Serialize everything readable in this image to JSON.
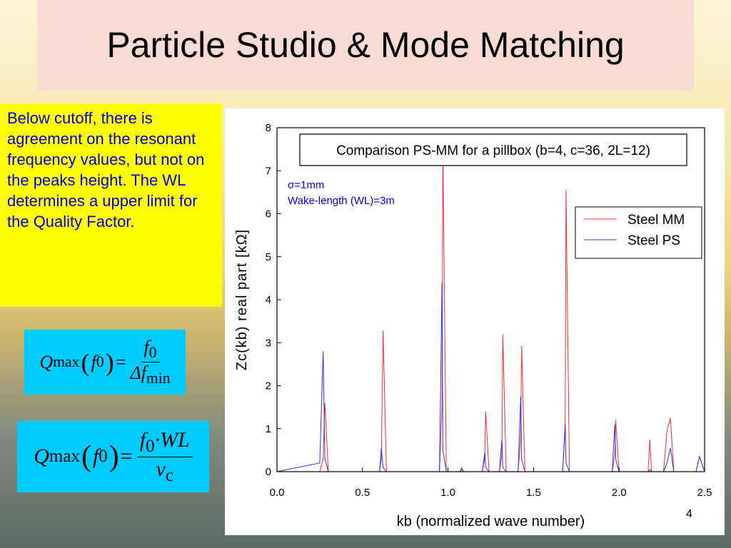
{
  "slide_title": "Particle Studio & Mode Matching",
  "body_text": "Below cutoff, there is agreement on the resonant  frequency values, but not on the peaks height. The WL determines a upper limit for the Quality Factor.",
  "formulas": [
    {
      "lhs": "Q",
      "lhs_sub": "max",
      "open": "(",
      "arg": "f",
      "arg_sub": "0",
      "close": ")",
      "eq": "=",
      "num": "f",
      "num_sub": "0",
      "num_rest": "",
      "den": "Δf",
      "den_sub": "min"
    },
    {
      "lhs": "Q",
      "lhs_sub": "max",
      "open": "(",
      "arg": "f",
      "arg_sub": "0",
      "close": ")",
      "eq": "=",
      "num": "f",
      "num_sub": "0",
      "num_rest": "·WL",
      "den": "ν",
      "den_sub": "c"
    }
  ],
  "page_number": "4",
  "chart_data": {
    "type": "line",
    "annotations": [
      "Comparison PS-MM for a pillbox (b=4, c=36, 2L=12)",
      "σ=1mm",
      "Wake-length (WL)=3m"
    ],
    "x_label": "kb (normalized wave number)",
    "y_label": "Zc(kb) real part [kΩ]",
    "x": [
      0.0,
      0.25,
      0.27,
      0.28,
      0.3,
      0.6,
      0.61,
      0.62,
      0.64,
      0.95,
      0.965,
      0.97,
      0.99,
      1.07,
      1.08,
      1.09,
      1.2,
      1.215,
      1.22,
      1.24,
      1.3,
      1.315,
      1.32,
      1.34,
      1.41,
      1.425,
      1.43,
      1.45,
      1.67,
      1.685,
      1.69,
      1.71,
      1.96,
      1.975,
      1.98,
      2.0,
      2.17,
      2.18,
      2.19,
      2.26,
      2.28,
      2.3,
      2.32,
      2.45,
      2.47,
      2.5
    ],
    "series": [
      {
        "name": "Steel MM",
        "color": "#f03030",
        "values": [
          0,
          0,
          0.3,
          1.6,
          0,
          0,
          0.3,
          3.28,
          0,
          0,
          1.5,
          7.5,
          0,
          0,
          0.1,
          0,
          0,
          0.3,
          1.4,
          0,
          0,
          0.4,
          3.2,
          0,
          0,
          0.8,
          2.93,
          0,
          0,
          1.0,
          6.55,
          0,
          0,
          0.4,
          1.2,
          0,
          0,
          0.75,
          0,
          0,
          0.95,
          1.25,
          0,
          0,
          0.35,
          0
        ]
      },
      {
        "name": "Steel PS",
        "color": "#3030f0",
        "values": [
          0,
          0.2,
          2.8,
          0.3,
          0,
          0,
          0.55,
          0.1,
          0,
          0,
          4.4,
          0.5,
          0,
          0,
          0.05,
          0,
          0,
          0.45,
          0.1,
          0,
          0,
          0.75,
          0.1,
          0,
          0,
          1.75,
          0.3,
          0,
          0,
          1.1,
          0.2,
          0,
          0,
          1.1,
          0.3,
          0,
          0,
          0.05,
          0,
          0,
          0.2,
          0.55,
          0,
          0,
          0.35,
          0
        ]
      }
    ],
    "xlim": [
      0,
      2.5
    ],
    "xticks": [
      {
        "value": 0,
        "label": "0.0"
      },
      0.5,
      {
        "value": 1,
        "label": "1.0"
      },
      1.5,
      {
        "value": 2,
        "label": "2.0"
      },
      2.5
    ],
    "ylim": [
      0,
      8
    ],
    "yticks": [
      0,
      1,
      2,
      3,
      4,
      5,
      6,
      7,
      8
    ],
    "legend": "right"
  }
}
